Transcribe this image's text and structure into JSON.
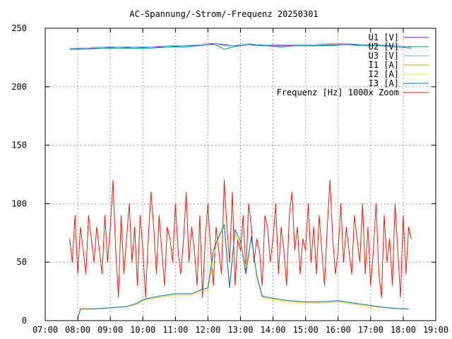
{
  "chart_data": {
    "type": "line",
    "title": "AC-Spannung/-Strom/-Frequenz 20250301",
    "xlabel": "",
    "ylabel": "",
    "x_range": [
      "07:00",
      "19:00"
    ],
    "ylim": [
      0,
      250
    ],
    "x_ticks": [
      "07:00",
      "08:00",
      "09:00",
      "10:00",
      "11:00",
      "12:00",
      "13:00",
      "14:00",
      "15:00",
      "16:00",
      "17:00",
      "18:00",
      "19:00"
    ],
    "y_ticks": [
      0,
      50,
      100,
      150,
      200,
      250
    ],
    "grid": true,
    "legend_position": "top-right",
    "series": [
      {
        "name": "U1 [V]",
        "color": "#9400d3",
        "x": [
          "07:45",
          "08:15",
          "08:45",
          "09:15",
          "09:45",
          "10:15",
          "10:45",
          "11:15",
          "11:45",
          "12:00",
          "12:15",
          "12:30",
          "12:45",
          "13:00",
          "13:15",
          "13:30",
          "13:45",
          "14:15",
          "14:45",
          "15:15",
          "15:45",
          "16:15",
          "16:45",
          "17:15",
          "17:45",
          "18:15"
        ],
        "values": [
          232,
          233,
          233,
          234,
          233,
          234,
          234,
          235,
          235,
          236,
          237,
          236,
          235,
          235,
          236,
          236,
          235,
          235,
          235,
          235,
          236,
          236,
          236,
          235,
          235,
          234
        ]
      },
      {
        "name": "U2 [V]",
        "color": "#009e73",
        "x": [
          "07:45",
          "08:15",
          "08:45",
          "09:15",
          "09:45",
          "10:15",
          "10:45",
          "11:15",
          "11:45",
          "12:00",
          "12:15",
          "12:30",
          "12:45",
          "13:00",
          "13:15",
          "13:30",
          "13:45",
          "14:15",
          "14:45",
          "15:15",
          "15:45",
          "16:15",
          "16:45",
          "17:15",
          "17:45",
          "18:15"
        ],
        "values": [
          232,
          232,
          233,
          233,
          233,
          233,
          234,
          234,
          235,
          236,
          236,
          232,
          234,
          235,
          236,
          235,
          235,
          234,
          235,
          235,
          235,
          236,
          235,
          235,
          234,
          233
        ]
      },
      {
        "name": "U3 [V]",
        "color": "#56b4e9",
        "x": [
          "07:45",
          "08:15",
          "08:45",
          "09:15",
          "09:45",
          "10:15",
          "10:45",
          "11:15",
          "11:45",
          "12:00",
          "12:15",
          "12:30",
          "12:45",
          "13:00",
          "13:15",
          "13:30",
          "13:45",
          "14:15",
          "14:45",
          "15:15",
          "15:45",
          "16:15",
          "16:45",
          "17:15",
          "17:45",
          "18:15"
        ],
        "values": [
          233,
          233,
          234,
          234,
          234,
          234,
          235,
          235,
          236,
          237,
          237,
          235,
          235,
          236,
          237,
          236,
          236,
          236,
          236,
          236,
          237,
          237,
          236,
          236,
          235,
          234
        ]
      },
      {
        "name": "I1 [A]",
        "color": "#e69f00",
        "x": [
          "08:00",
          "08:05",
          "08:30",
          "09:00",
          "09:30",
          "09:50",
          "10:00",
          "10:30",
          "11:00",
          "11:30",
          "11:45",
          "12:00",
          "12:10",
          "12:20",
          "12:30",
          "12:40",
          "12:50",
          "13:00",
          "13:10",
          "13:20",
          "13:30",
          "13:40",
          "14:00",
          "14:30",
          "15:00",
          "15:30",
          "16:00",
          "16:30",
          "17:00",
          "17:30",
          "18:00",
          "18:10"
        ],
        "values": [
          2,
          10,
          10,
          11,
          12,
          14,
          17,
          20,
          22,
          22,
          25,
          26,
          55,
          70,
          80,
          30,
          75,
          65,
          45,
          70,
          40,
          20,
          18,
          16,
          15,
          15,
          16,
          14,
          12,
          11,
          10,
          10
        ]
      },
      {
        "name": "I2 [A]",
        "color": "#f0e442",
        "x": [
          "08:00",
          "08:05",
          "08:30",
          "09:00",
          "09:30",
          "09:50",
          "10:00",
          "10:30",
          "11:00",
          "11:30",
          "11:45",
          "12:00",
          "12:10",
          "12:20",
          "12:30",
          "12:40",
          "12:50",
          "13:00",
          "13:10",
          "13:20",
          "13:30",
          "13:40",
          "14:00",
          "14:30",
          "15:00",
          "15:30",
          "16:00",
          "16:30",
          "17:00",
          "17:30",
          "18:00",
          "18:10"
        ],
        "values": [
          2,
          10,
          10,
          11,
          12,
          14,
          17,
          20,
          22,
          22,
          25,
          26,
          55,
          70,
          80,
          30,
          75,
          65,
          45,
          70,
          40,
          20,
          18,
          16,
          15,
          15,
          16,
          14,
          12,
          11,
          10,
          10
        ]
      },
      {
        "name": "I3 [A]",
        "color": "#0072b2",
        "x": [
          "08:00",
          "08:05",
          "08:30",
          "09:00",
          "09:30",
          "09:50",
          "10:00",
          "10:30",
          "11:00",
          "11:30",
          "11:45",
          "12:00",
          "12:10",
          "12:20",
          "12:30",
          "12:40",
          "12:50",
          "13:00",
          "13:10",
          "13:20",
          "13:30",
          "13:40",
          "14:00",
          "14:30",
          "15:00",
          "15:30",
          "16:00",
          "16:30",
          "17:00",
          "17:30",
          "18:00",
          "18:10"
        ],
        "values": [
          2,
          10,
          10,
          11,
          12,
          15,
          18,
          21,
          23,
          23,
          26,
          28,
          60,
          72,
          82,
          28,
          78,
          68,
          40,
          72,
          38,
          21,
          19,
          17,
          16,
          16,
          17,
          15,
          13,
          11,
          10,
          10
        ]
      },
      {
        "name": "Frequenz [Hz] 1000x Zoom",
        "color": "#e51e10",
        "x": [
          "07:45",
          "07:50",
          "07:55",
          "08:00",
          "08:05",
          "08:10",
          "08:15",
          "08:20",
          "08:25",
          "08:30",
          "08:35",
          "08:40",
          "08:45",
          "08:50",
          "08:55",
          "09:00",
          "09:05",
          "09:10",
          "09:15",
          "09:20",
          "09:25",
          "09:30",
          "09:35",
          "09:40",
          "09:45",
          "09:50",
          "09:55",
          "10:00",
          "10:05",
          "10:10",
          "10:15",
          "10:20",
          "10:25",
          "10:30",
          "10:35",
          "10:40",
          "10:45",
          "10:50",
          "10:55",
          "11:00",
          "11:05",
          "11:10",
          "11:15",
          "11:20",
          "11:25",
          "11:30",
          "11:35",
          "11:40",
          "11:45",
          "11:50",
          "11:55",
          "12:00",
          "12:05",
          "12:10",
          "12:15",
          "12:20",
          "12:25",
          "12:30",
          "12:35",
          "12:40",
          "12:45",
          "12:50",
          "12:55",
          "13:00",
          "13:05",
          "13:10",
          "13:15",
          "13:20",
          "13:25",
          "13:30",
          "13:35",
          "13:40",
          "13:45",
          "13:50",
          "13:55",
          "14:00",
          "14:05",
          "14:10",
          "14:15",
          "14:20",
          "14:25",
          "14:30",
          "14:35",
          "14:40",
          "14:45",
          "14:50",
          "14:55",
          "15:00",
          "15:05",
          "15:10",
          "15:15",
          "15:20",
          "15:25",
          "15:30",
          "15:35",
          "15:40",
          "15:45",
          "15:50",
          "15:55",
          "16:00",
          "16:05",
          "16:10",
          "16:15",
          "16:20",
          "16:25",
          "16:30",
          "16:35",
          "16:40",
          "16:45",
          "16:50",
          "16:55",
          "17:00",
          "17:05",
          "17:10",
          "17:15",
          "17:20",
          "17:25",
          "17:30",
          "17:35",
          "17:40",
          "17:45",
          "17:50",
          "17:55",
          "18:00",
          "18:05",
          "18:10",
          "18:15"
        ],
        "values": [
          70,
          50,
          90,
          40,
          80,
          60,
          40,
          90,
          70,
          50,
          80,
          60,
          40,
          90,
          50,
          80,
          120,
          60,
          20,
          90,
          40,
          70,
          100,
          50,
          80,
          30,
          90,
          60,
          20,
          70,
          110,
          80,
          40,
          90,
          60,
          30,
          80,
          70,
          50,
          100,
          60,
          40,
          70,
          110,
          50,
          80,
          60,
          30,
          90,
          20,
          70,
          100,
          60,
          30,
          80,
          60,
          40,
          120,
          80,
          50,
          110,
          30,
          70,
          60,
          90,
          40,
          100,
          80,
          50,
          70,
          60,
          30,
          90,
          80,
          50,
          70,
          100,
          40,
          80,
          60,
          30,
          90,
          110,
          60,
          80,
          40,
          70,
          60,
          100,
          50,
          80,
          40,
          90,
          60,
          30,
          80,
          120,
          70,
          40,
          60,
          100,
          50,
          80,
          60,
          40,
          90,
          70,
          50,
          100,
          40,
          80,
          30,
          60,
          100,
          40,
          20,
          90,
          50,
          70,
          30,
          100,
          60,
          20,
          90,
          40,
          80,
          70
        ]
      }
    ]
  }
}
